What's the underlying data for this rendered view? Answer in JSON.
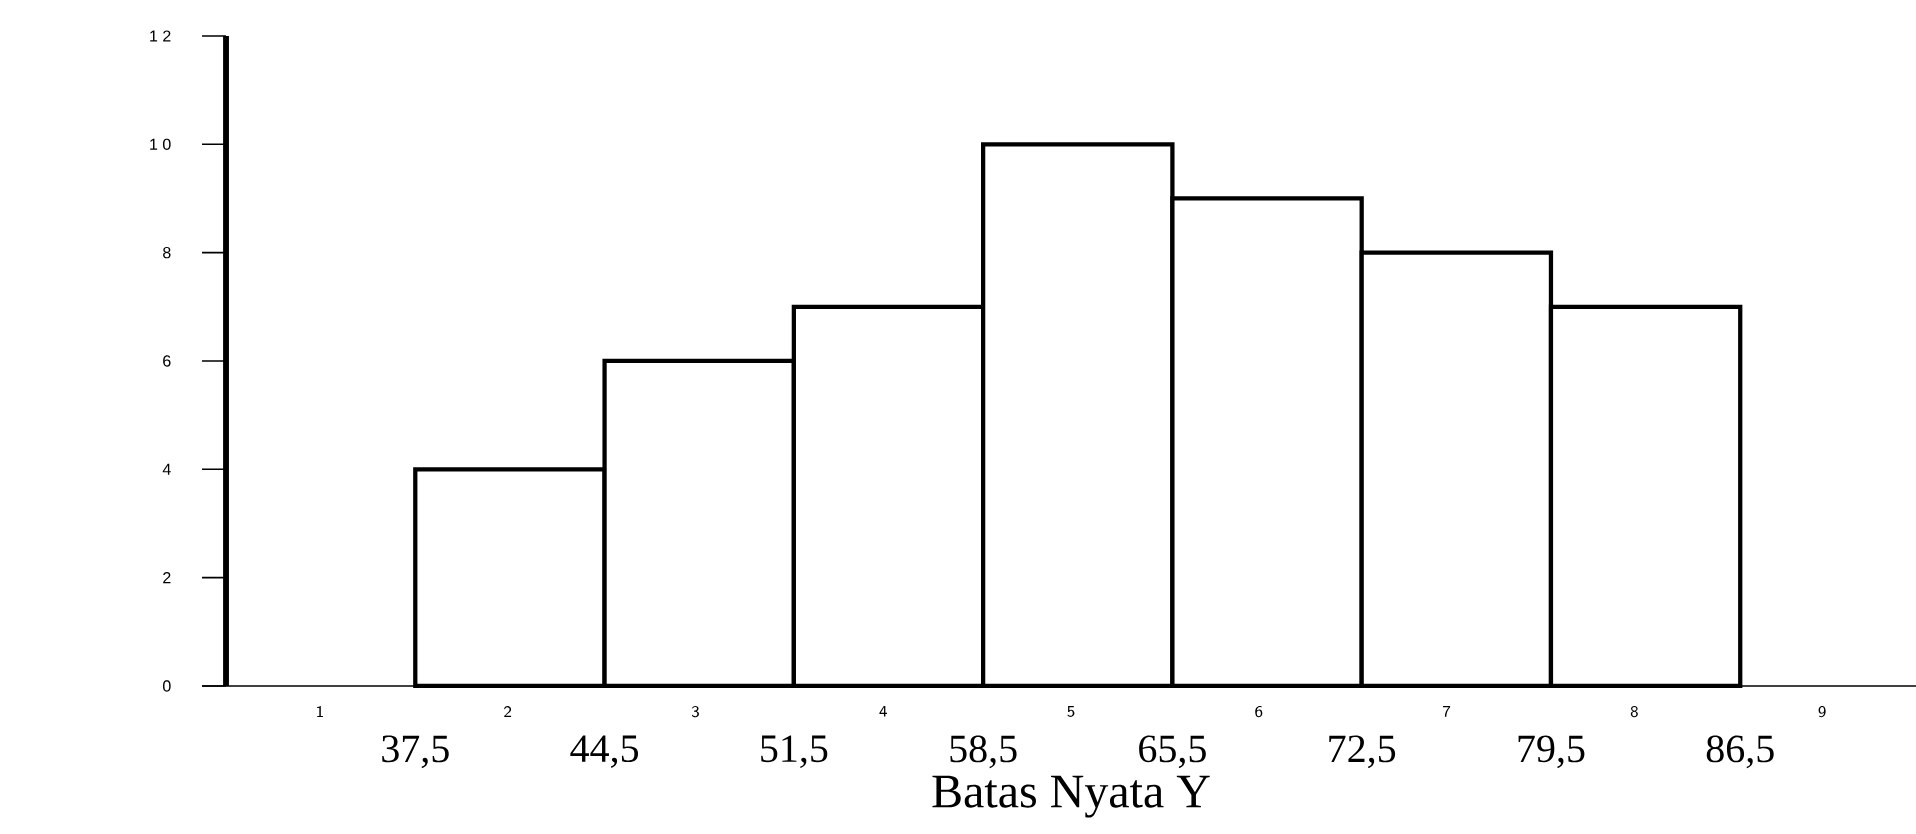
{
  "chart_data": {
    "type": "histogram",
    "xlabel": "Batas Nyata Y",
    "bins": [
      37.5,
      44.5,
      51.5,
      58.5,
      65.5,
      72.5,
      79.5,
      86.5
    ],
    "values": [
      4,
      6,
      7,
      10,
      9,
      8,
      7
    ],
    "color": "#ffffff",
    "xlim": [
      30.5,
      93
    ],
    "ylim": [
      0,
      12
    ],
    "xticks": [
      {
        "value": 37.5,
        "label": "37,5"
      },
      {
        "value": 44.5,
        "label": "44,5"
      },
      {
        "value": 51.5,
        "label": "51,5"
      },
      {
        "value": 58.5,
        "label": "58,5"
      },
      {
        "value": 65.5,
        "label": "65,5"
      },
      {
        "value": 72.5,
        "label": "72,5"
      },
      {
        "value": 79.5,
        "label": "79,5"
      },
      {
        "value": 86.5,
        "label": "86,5"
      }
    ],
    "yticks": [
      0,
      2,
      4,
      6,
      8,
      {
        "value": 10,
        "label": "1 0"
      },
      {
        "value": 12,
        "label": "1 2"
      }
    ],
    "annotations": [
      "1",
      "2",
      "3",
      "4",
      "5",
      "6",
      "7",
      "8",
      "9"
    ],
    "grid": false
  }
}
